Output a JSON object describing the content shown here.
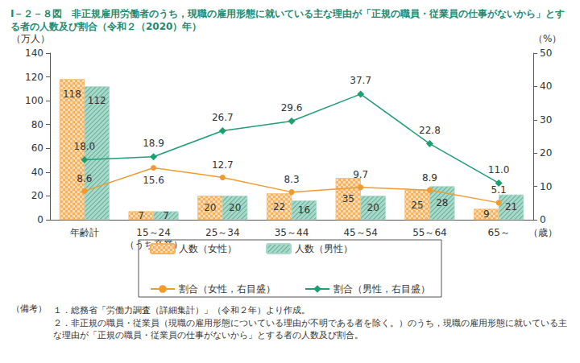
{
  "chart_data": {
    "type": "bar",
    "title": "Ⅰ－２－８図　非正規雇用労働者のうち，現職の雇用形態に就いている主な理由が「正規の職員・従業員の仕事がないから」とする者の人数及び割合（令和２（2020）年）",
    "x_label": "（歳）",
    "y_label": "（万人）",
    "y2_label": "（%）",
    "categories": [
      "年齢計",
      "15～24\n（うち卒業）",
      "25～34",
      "35～44",
      "45～54",
      "55～64",
      "65～"
    ],
    "series": [
      {
        "name": "人数（女性）",
        "type": "bar",
        "color": "#f7b25e",
        "values": [
          118,
          7,
          20,
          22,
          35,
          25,
          9
        ]
      },
      {
        "name": "人数（男性）",
        "type": "bar",
        "color": "#a8d9c9",
        "values": [
          112,
          7,
          20,
          16,
          20,
          28,
          21
        ]
      },
      {
        "name": "割合（女性，右目盛）",
        "type": "line",
        "axis": "y2",
        "color": "#f39a2e",
        "marker": "circle",
        "values": [
          8.6,
          15.6,
          12.7,
          8.3,
          9.7,
          8.9,
          5.1
        ]
      },
      {
        "name": "割合（男性，右目盛）",
        "type": "line",
        "axis": "y2",
        "color": "#1f9e6f",
        "marker": "diamond",
        "values": [
          18.0,
          18.9,
          26.7,
          29.6,
          37.7,
          22.8,
          11.0
        ],
        "value_labels": [
          "18.0",
          "18.9",
          "26.7",
          "29.6",
          "37.7",
          "22.8",
          "11.0"
        ]
      }
    ],
    "ylim": [
      0,
      140
    ],
    "yticks": [
      0,
      20,
      40,
      60,
      80,
      100,
      120,
      140
    ],
    "y2lim": [
      0,
      50
    ],
    "y2ticks": [
      0,
      10,
      20,
      30,
      40,
      50
    ],
    "grid": false,
    "legend": "bottom",
    "data_labels": true,
    "annotations": [
      "（備考）",
      "１．総務省「労働力調査（詳細集計）」（令和２年）より作成。",
      "２．非正規の職員・従業員（現職の雇用形態についている理由が不明である者を除く。）のうち，現職の雇用形態に就いている主な理由が「正規の職員・従業員の仕事がないから」とする者の人数及び割合。"
    ]
  }
}
